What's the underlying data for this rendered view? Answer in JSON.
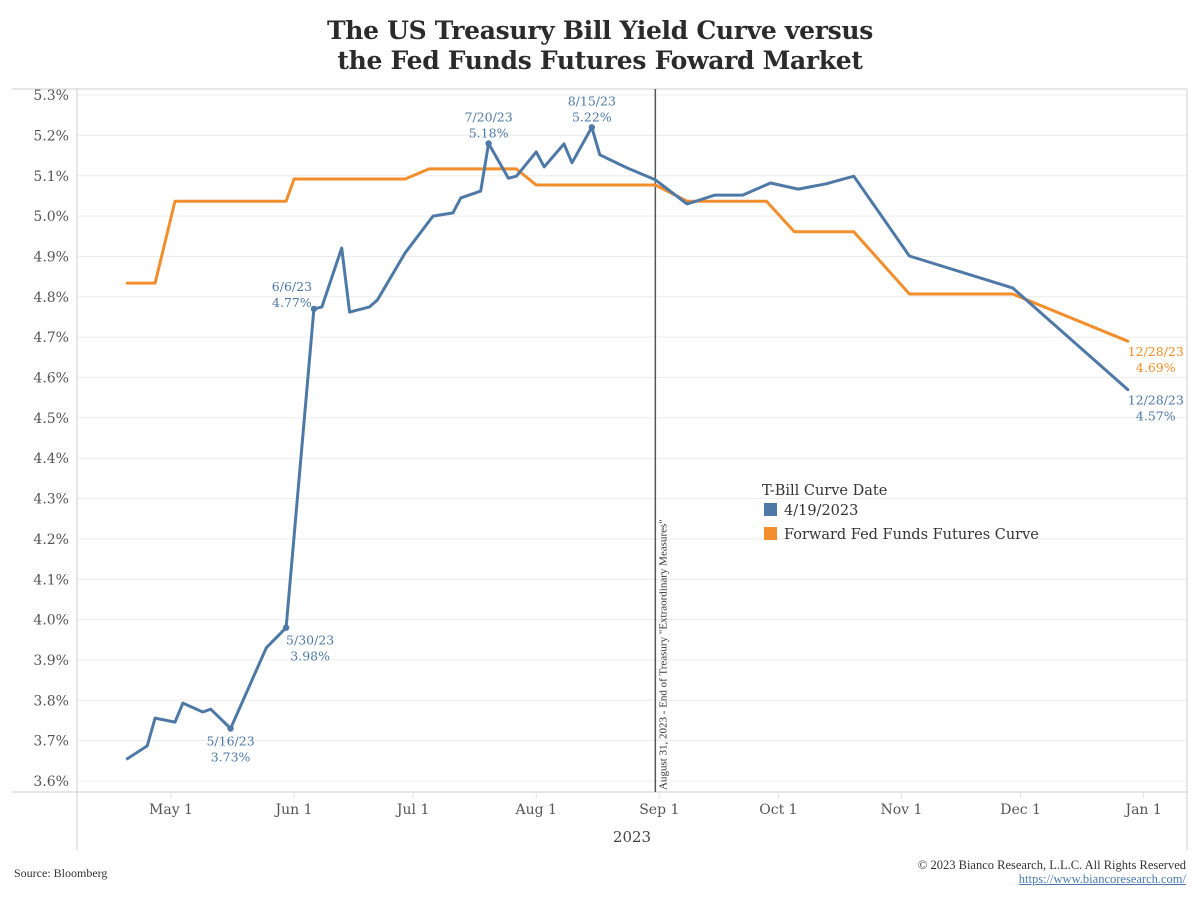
{
  "title_lines": [
    "The US Treasury Bill Yield Curve versus",
    "the Fed Funds Futures Foward Market"
  ],
  "footer": {
    "source": "Source: Bloomberg",
    "copyright": "© 2023 Bianco Research, L.L.C. All Rights Reserved",
    "url": "https://www.biancoresearch.com/"
  },
  "chart_data": {
    "type": "line",
    "title": "The US Treasury Bill Yield Curve versus the Fed Funds Futures Foward Market",
    "xlabel": "2023",
    "ylabel": "",
    "x_type": "date",
    "xlim": [
      "2023-04-14",
      "2024-01-09"
    ],
    "ylim": [
      3.58,
      5.32
    ],
    "x_ticks": [
      {
        "date": "2023-05-01",
        "label": "May 1"
      },
      {
        "date": "2023-06-01",
        "label": "Jun 1"
      },
      {
        "date": "2023-07-01",
        "label": "Jul 1"
      },
      {
        "date": "2023-08-01",
        "label": "Aug 1"
      },
      {
        "date": "2023-09-01",
        "label": "Sep 1"
      },
      {
        "date": "2023-10-01",
        "label": "Oct 1"
      },
      {
        "date": "2023-11-01",
        "label": "Nov 1"
      },
      {
        "date": "2023-12-01",
        "label": "Dec 1"
      },
      {
        "date": "2024-01-01",
        "label": "Jan 1"
      }
    ],
    "y_ticks": [
      3.6,
      3.7,
      3.8,
      3.9,
      4.0,
      4.1,
      4.2,
      4.3,
      4.4,
      4.5,
      4.6,
      4.7,
      4.8,
      4.9,
      5.0,
      5.1,
      5.2,
      5.3
    ],
    "y_tick_labels": [
      "3.6%",
      "3.7%",
      "3.8%",
      "3.9%",
      "4.0%",
      "4.1%",
      "4.2%",
      "4.3%",
      "4.4%",
      "4.5%",
      "4.6%",
      "4.7%",
      "4.8%",
      "4.9%",
      "5.0%",
      "5.1%",
      "5.2%",
      "5.3%"
    ],
    "grid": "horizontal",
    "legend": {
      "title": "T-Bill Curve Date",
      "placement": "center-right",
      "entries": [
        {
          "label": "4/19/2023",
          "color": "#4e79a7"
        },
        {
          "label": "Forward Fed Funds Futures Curve",
          "color": "#f28e2b"
        }
      ]
    },
    "series": [
      {
        "name": "4/19/2023",
        "color": "#4e79a7",
        "points": [
          [
            "2023-04-20",
            3.655
          ],
          [
            "2023-04-25",
            3.687
          ],
          [
            "2023-04-27",
            3.756
          ],
          [
            "2023-05-02",
            3.746
          ],
          [
            "2023-05-04",
            3.793
          ],
          [
            "2023-05-09",
            3.771
          ],
          [
            "2023-05-11",
            3.778
          ],
          [
            "2023-05-16",
            3.73
          ],
          [
            "2023-05-25",
            3.93
          ],
          [
            "2023-05-30",
            3.98
          ],
          [
            "2023-06-06",
            4.77
          ],
          [
            "2023-06-08",
            4.775
          ],
          [
            "2023-06-13",
            4.921
          ],
          [
            "2023-06-15",
            4.762
          ],
          [
            "2023-06-20",
            4.775
          ],
          [
            "2023-06-22",
            4.792
          ],
          [
            "2023-06-29",
            4.909
          ],
          [
            "2023-07-06",
            5.0
          ],
          [
            "2023-07-11",
            5.008
          ],
          [
            "2023-07-13",
            5.045
          ],
          [
            "2023-07-18",
            5.062
          ],
          [
            "2023-07-20",
            5.18
          ],
          [
            "2023-07-25",
            5.094
          ],
          [
            "2023-07-27",
            5.099
          ],
          [
            "2023-08-01",
            5.159
          ],
          [
            "2023-08-03",
            5.122
          ],
          [
            "2023-08-08",
            5.179
          ],
          [
            "2023-08-10",
            5.132
          ],
          [
            "2023-08-15",
            5.22
          ],
          [
            "2023-08-17",
            5.152
          ],
          [
            "2023-08-24",
            5.119
          ],
          [
            "2023-08-31",
            5.09
          ],
          [
            "2023-09-08",
            5.03
          ],
          [
            "2023-09-15",
            5.052
          ],
          [
            "2023-09-22",
            5.052
          ],
          [
            "2023-09-29",
            5.082
          ],
          [
            "2023-10-06",
            5.067
          ],
          [
            "2023-10-13",
            5.08
          ],
          [
            "2023-10-20",
            5.099
          ],
          [
            "2023-11-03",
            4.901
          ],
          [
            "2023-11-29",
            4.822
          ],
          [
            "2023-12-28",
            4.57
          ]
        ]
      },
      {
        "name": "Forward Fed Funds Futures Curve",
        "color": "#f28e2b",
        "points": [
          [
            "2023-04-20",
            4.834
          ],
          [
            "2023-04-27",
            4.834
          ],
          [
            "2023-05-02",
            5.037
          ],
          [
            "2023-05-30",
            5.037
          ],
          [
            "2023-06-01",
            5.092
          ],
          [
            "2023-06-29",
            5.092
          ],
          [
            "2023-07-05",
            5.117
          ],
          [
            "2023-07-27",
            5.117
          ],
          [
            "2023-08-01",
            5.077
          ],
          [
            "2023-08-31",
            5.077
          ],
          [
            "2023-09-08",
            5.037
          ],
          [
            "2023-09-28",
            5.037
          ],
          [
            "2023-10-05",
            4.961
          ],
          [
            "2023-10-20",
            4.961
          ],
          [
            "2023-11-03",
            4.807
          ],
          [
            "2023-11-29",
            4.807
          ],
          [
            "2023-12-28",
            4.69
          ]
        ]
      }
    ],
    "annotations": [
      {
        "series": 0,
        "date": "2023-05-16",
        "value": 3.73,
        "lines": [
          "5/16/23",
          "3.73%"
        ],
        "pos": "below"
      },
      {
        "series": 0,
        "date": "2023-05-30",
        "value": 3.98,
        "lines": [
          "5/30/23",
          "3.98%"
        ],
        "pos": "below-right"
      },
      {
        "series": 0,
        "date": "2023-06-06",
        "value": 4.77,
        "lines": [
          "6/6/23",
          "4.77%"
        ],
        "pos": "above-left"
      },
      {
        "series": 0,
        "date": "2023-07-20",
        "value": 5.18,
        "lines": [
          "7/20/23",
          "5.18%"
        ],
        "pos": "above"
      },
      {
        "series": 0,
        "date": "2023-08-15",
        "value": 5.22,
        "lines": [
          "8/15/23",
          "5.22%"
        ],
        "pos": "above"
      },
      {
        "series": 0,
        "date": "2023-12-28",
        "value": 4.57,
        "lines": [
          "12/28/23",
          "4.57%"
        ],
        "pos": "below-right"
      },
      {
        "series": 1,
        "date": "2023-12-28",
        "value": 4.69,
        "lines": [
          "12/28/23",
          "4.69%"
        ],
        "pos": "below-right"
      }
    ],
    "reference_line": {
      "date": "2023-08-31",
      "label": "August 31, 2023 - End of Treasury \"Extraordinary Measures\""
    }
  }
}
